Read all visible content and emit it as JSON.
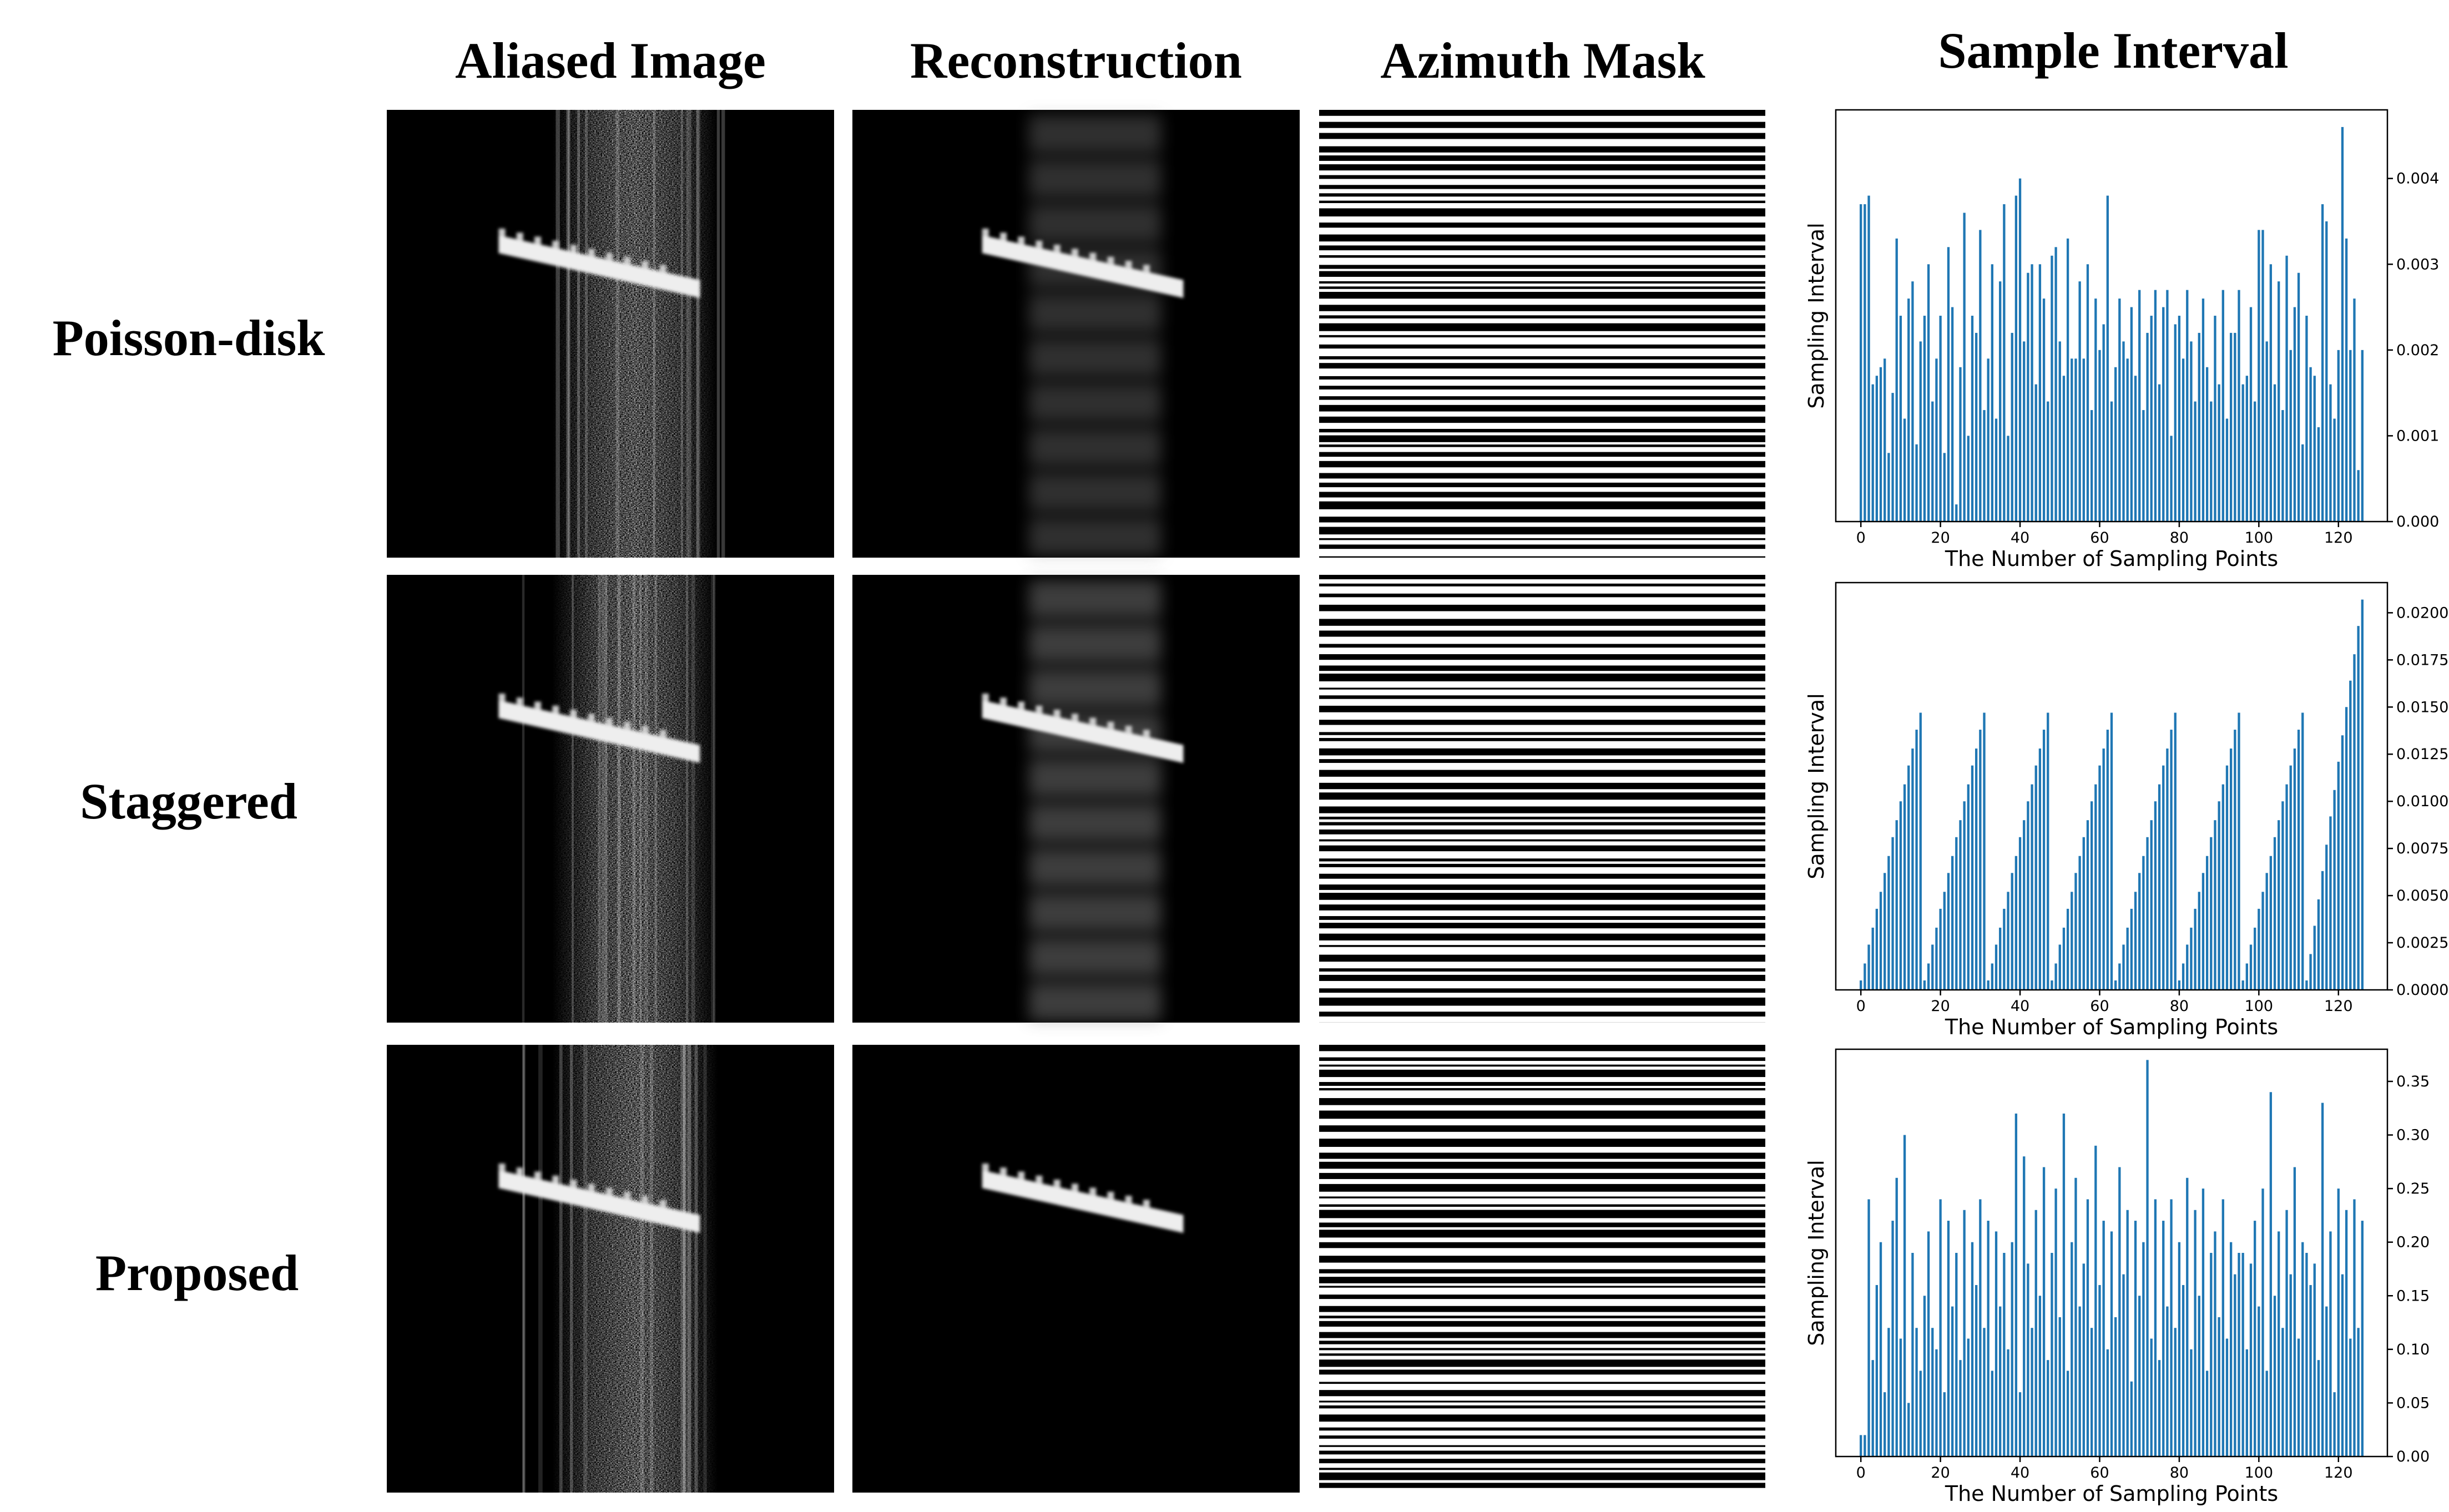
{
  "header": {
    "columns": [
      "Aliased Image",
      "Reconstruction",
      "Azimuth Mask",
      "Sample Interval"
    ]
  },
  "rows": [
    "Poisson-disk",
    "Staggered",
    "Proposed"
  ],
  "chart_data": [
    {
      "type": "bar",
      "xlabel": "The Number of Sampling Points",
      "ylabel": "Sampling Interval",
      "color": "#1f77b4",
      "xlim": [
        -6.3,
        132.3
      ],
      "xticks": [
        0,
        20,
        40,
        60,
        80,
        100,
        120
      ],
      "ylim": [
        0,
        0.0048
      ],
      "yticks": [
        {
          "value": 0,
          "label": "0.000"
        },
        {
          "value": 0.001,
          "label": "0.001"
        },
        {
          "value": 0.002,
          "label": "0.002"
        },
        {
          "value": 0.003,
          "label": "0.003"
        },
        {
          "value": 0.004,
          "label": "0.004"
        }
      ],
      "values": [
        0.0037,
        0.0037,
        0.0038,
        0.0016,
        0.0017,
        0.0018,
        0.0019,
        0.0008,
        0.0015,
        0.0033,
        0.0024,
        0.0012,
        0.0026,
        0.0028,
        0.0009,
        0.0021,
        0.0024,
        0.003,
        0.0014,
        0.0019,
        0.0024,
        0.0008,
        0.0032,
        0.0025,
        0.0002,
        0.0018,
        0.0036,
        0.001,
        0.0024,
        0.0022,
        0.0034,
        0.0013,
        0.0019,
        0.003,
        0.0012,
        0.0028,
        0.0037,
        0.001,
        0.0022,
        0.0038,
        0.004,
        0.0021,
        0.0029,
        0.003,
        0.0016,
        0.003,
        0.0026,
        0.0014,
        0.0031,
        0.0032,
        0.0021,
        0.0017,
        0.0033,
        0.0019,
        0.0019,
        0.0028,
        0.0019,
        0.003,
        0.0013,
        0.0026,
        0.002,
        0.0023,
        0.0038,
        0.0014,
        0.0018,
        0.0026,
        0.0021,
        0.0019,
        0.0025,
        0.0017,
        0.0027,
        0.0013,
        0.0022,
        0.0024,
        0.0027,
        0.0016,
        0.0025,
        0.0027,
        0.001,
        0.0023,
        0.0024,
        0.0019,
        0.0027,
        0.0021,
        0.0014,
        0.0022,
        0.0026,
        0.0018,
        0.0014,
        0.0024,
        0.0016,
        0.0027,
        0.0012,
        0.0022,
        0.0022,
        0.0027,
        0.0016,
        0.0017,
        0.0025,
        0.0014,
        0.0034,
        0.0034,
        0.0021,
        0.003,
        0.0016,
        0.0028,
        0.0013,
        0.0031,
        0.002,
        0.0025,
        0.0029,
        0.0009,
        0.0024,
        0.0018,
        0.0017,
        0.0011,
        0.0037,
        0.0035,
        0.0016,
        0.0012,
        0.002,
        0.0046,
        0.0033,
        0.002,
        0.0026,
        0.0006,
        0.002
      ]
    },
    {
      "type": "bar",
      "xlabel": "The Number of Sampling Points",
      "ylabel": "Sampling Interval",
      "color": "#1f77b4",
      "xlim": [
        -6.3,
        132.3
      ],
      "xticks": [
        0,
        20,
        40,
        60,
        80,
        100,
        120
      ],
      "ylim": [
        0,
        0.0216
      ],
      "yticks": [
        {
          "value": 0,
          "label": "0.0000"
        },
        {
          "value": 0.0025,
          "label": "0.0025"
        },
        {
          "value": 0.005,
          "label": "0.0050"
        },
        {
          "value": 0.0075,
          "label": "0.0075"
        },
        {
          "value": 0.01,
          "label": "0.0100"
        },
        {
          "value": 0.0125,
          "label": "0.0125"
        },
        {
          "value": 0.015,
          "label": "0.0150"
        },
        {
          "value": 0.0175,
          "label": "0.0175"
        },
        {
          "value": 0.02,
          "label": "0.0200"
        }
      ],
      "values": [
        0.0005,
        0.0014,
        0.0024,
        0.0033,
        0.0043,
        0.0052,
        0.0062,
        0.0071,
        0.0081,
        0.009,
        0.01,
        0.0109,
        0.0119,
        0.0128,
        0.0138,
        0.0147,
        0.0005,
        0.0014,
        0.0024,
        0.0033,
        0.0043,
        0.0052,
        0.0062,
        0.0071,
        0.0081,
        0.009,
        0.01,
        0.0109,
        0.0119,
        0.0128,
        0.0138,
        0.0147,
        0.0005,
        0.0014,
        0.0024,
        0.0033,
        0.0043,
        0.0052,
        0.0062,
        0.0071,
        0.0081,
        0.009,
        0.01,
        0.0109,
        0.0119,
        0.0128,
        0.0138,
        0.0147,
        0.0005,
        0.0014,
        0.0024,
        0.0033,
        0.0043,
        0.0052,
        0.0062,
        0.0071,
        0.0081,
        0.009,
        0.01,
        0.0109,
        0.0119,
        0.0128,
        0.0138,
        0.0147,
        0.0005,
        0.0014,
        0.0024,
        0.0033,
        0.0043,
        0.0052,
        0.0062,
        0.0071,
        0.0081,
        0.009,
        0.01,
        0.0109,
        0.0119,
        0.0128,
        0.0138,
        0.0147,
        0.0005,
        0.0014,
        0.0024,
        0.0033,
        0.0043,
        0.0052,
        0.0062,
        0.0071,
        0.0081,
        0.009,
        0.01,
        0.0109,
        0.0119,
        0.0128,
        0.0138,
        0.0147,
        0.0005,
        0.0014,
        0.0024,
        0.0033,
        0.0043,
        0.0052,
        0.0062,
        0.0071,
        0.0081,
        0.009,
        0.01,
        0.0109,
        0.0119,
        0.0128,
        0.0138,
        0.0147,
        0.0005,
        0.0019,
        0.0034,
        0.0048,
        0.0063,
        0.0077,
        0.0092,
        0.0106,
        0.0121,
        0.0135,
        0.015,
        0.0164,
        0.0178,
        0.0193,
        0.0207
      ]
    },
    {
      "type": "bar",
      "xlabel": "The Number of Sampling Points",
      "ylabel": "Sampling Interval",
      "color": "#1f77b4",
      "xlim": [
        -6.3,
        132.3
      ],
      "xticks": [
        0,
        20,
        40,
        60,
        80,
        100,
        120
      ],
      "ylim": [
        0,
        0.38
      ],
      "yticks": [
        {
          "value": 0,
          "label": "0.00"
        },
        {
          "value": 0.05,
          "label": "0.05"
        },
        {
          "value": 0.1,
          "label": "0.10"
        },
        {
          "value": 0.15,
          "label": "0.15"
        },
        {
          "value": 0.2,
          "label": "0.20"
        },
        {
          "value": 0.25,
          "label": "0.25"
        },
        {
          "value": 0.3,
          "label": "0.30"
        },
        {
          "value": 0.35,
          "label": "0.35"
        }
      ],
      "values": [
        0.02,
        0.02,
        0.24,
        0.09,
        0.16,
        0.2,
        0.06,
        0.12,
        0.22,
        0.26,
        0.11,
        0.3,
        0.05,
        0.19,
        0.12,
        0.08,
        0.15,
        0.21,
        0.12,
        0.1,
        0.24,
        0.06,
        0.22,
        0.14,
        0.19,
        0.09,
        0.23,
        0.11,
        0.2,
        0.16,
        0.24,
        0.12,
        0.22,
        0.08,
        0.21,
        0.14,
        0.19,
        0.1,
        0.2,
        0.32,
        0.06,
        0.28,
        0.18,
        0.12,
        0.23,
        0.15,
        0.27,
        0.09,
        0.19,
        0.25,
        0.13,
        0.32,
        0.08,
        0.2,
        0.26,
        0.14,
        0.18,
        0.24,
        0.12,
        0.29,
        0.16,
        0.22,
        0.1,
        0.21,
        0.13,
        0.27,
        0.17,
        0.23,
        0.07,
        0.22,
        0.15,
        0.2,
        0.37,
        0.11,
        0.24,
        0.09,
        0.22,
        0.14,
        0.24,
        0.12,
        0.2,
        0.16,
        0.26,
        0.1,
        0.23,
        0.15,
        0.25,
        0.08,
        0.19,
        0.21,
        0.13,
        0.24,
        0.11,
        0.2,
        0.17,
        0.19,
        0.19,
        0.1,
        0.18,
        0.22,
        0.14,
        0.25,
        0.08,
        0.34,
        0.15,
        0.21,
        0.12,
        0.23,
        0.17,
        0.27,
        0.11,
        0.2,
        0.19,
        0.16,
        0.18,
        0.09,
        0.33,
        0.14,
        0.21,
        0.06,
        0.25,
        0.17,
        0.23,
        0.11,
        0.24,
        0.12,
        0.22
      ]
    }
  ]
}
